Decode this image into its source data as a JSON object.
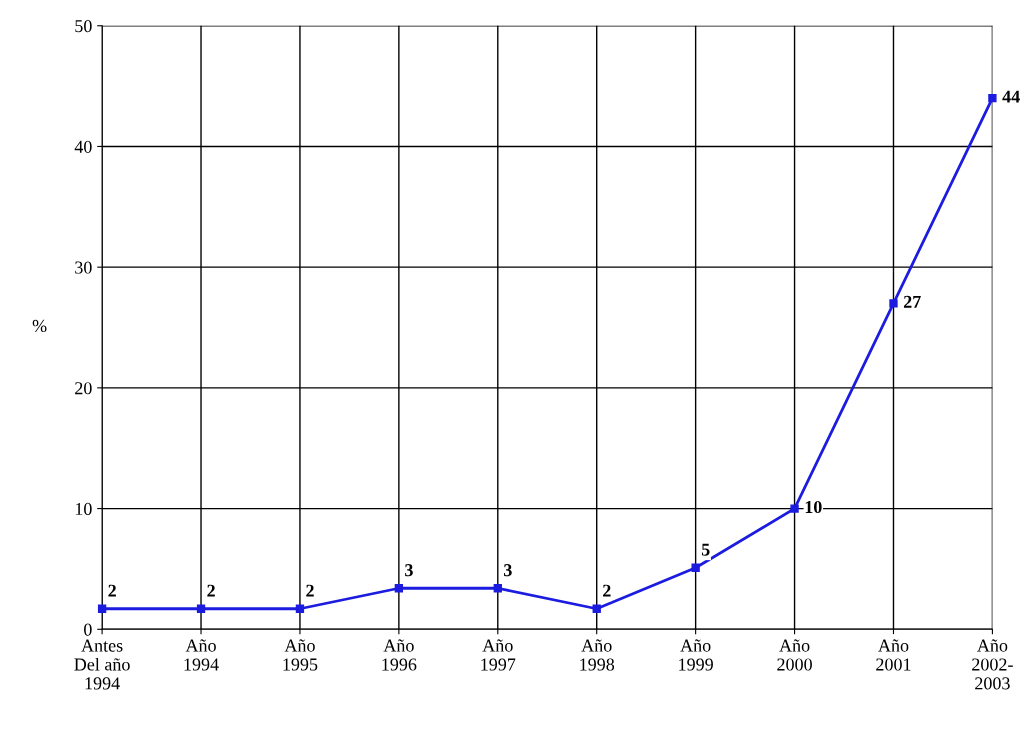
{
  "chart_data": {
    "type": "line",
    "ylabel": "%",
    "categories": [
      "Antes\nDel año\n1994",
      "Año\n1994",
      "Año\n1995",
      "Año\n1996",
      "Año\n1997",
      "Año\n1998",
      "Año\n1999",
      "Año\n2000",
      "Año\n2001",
      "Año\n2002-\n2003"
    ],
    "series": [
      {
        "color": "#1c1ce0",
        "values": [
          1.7,
          1.7,
          1.7,
          3.4,
          3.4,
          1.7,
          5.1,
          10,
          27,
          44
        ],
        "value_labels": [
          "2",
          "2",
          "2",
          "3",
          "3",
          "2",
          "5",
          "10",
          "27",
          "44"
        ]
      }
    ],
    "ylim": [
      0,
      50
    ],
    "yticks": [
      0,
      10,
      20,
      30,
      40,
      50
    ],
    "grid": true,
    "marker": "square",
    "line_style": "solid"
  }
}
